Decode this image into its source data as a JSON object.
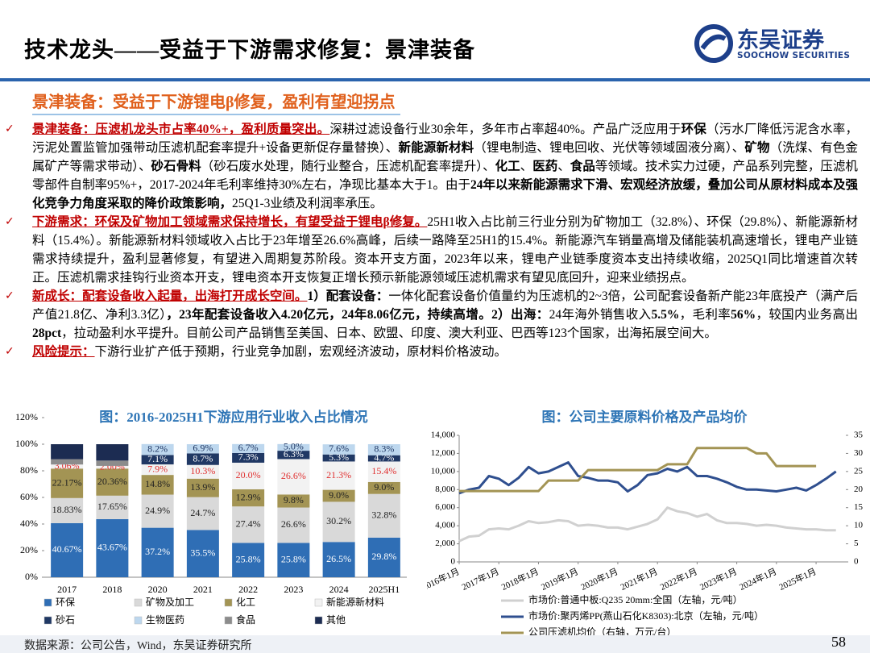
{
  "header": {
    "title": "技术龙头——受益于下游需求修复：景津装备",
    "logo_name": "东吴证券",
    "logo_sub": "SOOCHOW SECURITIES"
  },
  "section_title": "景津装备：受益于下游锂电β修复，盈利有望迎拐点",
  "bullets": [
    {
      "runs": [
        {
          "text": "景津装备：压滤机龙头市占率40%+，盈利质量突出。",
          "style": "red-bold"
        },
        {
          "text": "深耕过滤设备行业30余年，多年市占率超40%。产品广泛应用于",
          "style": "normal"
        },
        {
          "text": "环保",
          "style": "bold"
        },
        {
          "text": "（污水厂降低污泥含水率，污泥处置监管加强带动压滤机配套率提升+设备更新促存量替换）、",
          "style": "normal"
        },
        {
          "text": "新能源新材料",
          "style": "bold"
        },
        {
          "text": "（锂电制造、锂电回收、光伏等领域固液分离）、",
          "style": "normal"
        },
        {
          "text": "矿物",
          "style": "bold"
        },
        {
          "text": "（洗煤、有色金属矿产等需求带动）、",
          "style": "normal"
        },
        {
          "text": "砂石骨料",
          "style": "bold"
        },
        {
          "text": "（砂石废水处理，随行业整合，压滤机配套率提升）、",
          "style": "normal"
        },
        {
          "text": "化工",
          "style": "bold"
        },
        {
          "text": "、",
          "style": "normal"
        },
        {
          "text": "医药",
          "style": "bold"
        },
        {
          "text": "、",
          "style": "normal"
        },
        {
          "text": "食品",
          "style": "bold"
        },
        {
          "text": "等领域。技术实力过硬，产品系列完整，压滤机零部件自制率95%+，2017-2024年毛利率维持30%左右，净现比基本大于1。由于",
          "style": "normal"
        },
        {
          "text": "24年以来新能源需求下滑、宏观经济放缓，叠加公司从原材料成本及强化竞争力角度采取的降价政策影响，",
          "style": "bold"
        },
        {
          "text": "25Q1-3业绩及利润率承压。",
          "style": "normal"
        }
      ]
    },
    {
      "runs": [
        {
          "text": "下游需求：环保及矿物加工领域需求保持增长，有望受益于锂电β修复。",
          "style": "red-bold"
        },
        {
          "text": "25H1收入占比前三行业分别为矿物加工（32.8%）、环保（29.8%）、新能源新材料（15.4%）。新能源新材料领域收入占比于23年增至26.6%高峰，后续一路降至25H1的15.4%。新能源汽车销量高增及储能装机高速增长，锂电产业链需求持续提升，盈利显著修复，有望进入周期复苏阶段。资本开支方面，2023年以来，锂电产业链季度资本支出持续收缩，2025Q1同比增速首次转正。压滤机需求挂钩行业资本开支，锂电资本开支恢复正增长预示新能源领域压滤机需求有望见底回升，迎来业绩拐点。",
          "style": "normal"
        }
      ]
    },
    {
      "runs": [
        {
          "text": "新成长：配套设备收入起量，出海打开成长空间。",
          "style": "red-bold"
        },
        {
          "text": "1）配套设备：",
          "style": "bold"
        },
        {
          "text": "一体化配套设备价值量约为压滤机的2~3倍，公司配套设备新产能23年底投产（满产后产值21.8亿、净利3.3亿）",
          "style": "normal"
        },
        {
          "text": "，23年配套设备收入4.20亿元，24年8.06亿元，持续高增。2）出海：",
          "style": "bold"
        },
        {
          "text": "24年海外销售收入",
          "style": "normal"
        },
        {
          "text": "5.5%",
          "style": "bold"
        },
        {
          "text": "，毛利率",
          "style": "normal"
        },
        {
          "text": "56%",
          "style": "bold"
        },
        {
          "text": "，较国内业务高出",
          "style": "normal"
        },
        {
          "text": "28pct",
          "style": "bold"
        },
        {
          "text": "，拉动盈利水平提升。目前公司产品销售至美国、日本、欧盟、印度、澳大利亚、巴西等123个国家，出海拓展空间大。",
          "style": "normal"
        }
      ]
    },
    {
      "runs": [
        {
          "text": "风险提示：",
          "style": "red-bold"
        },
        {
          "text": "下游行业扩产低于预期，行业竞争加剧，宏观经济波动，原材料价格波动。",
          "style": "normal"
        }
      ]
    }
  ],
  "chart_data": [
    {
      "type": "stacked_bar",
      "title": "图：2016-2025H1下游应用行业收入占比情况",
      "categories": [
        "2017",
        "2018",
        "2020",
        "2021",
        "2022",
        "2023",
        "2024",
        "2025H1"
      ],
      "ylim": [
        0,
        120
      ],
      "yticks": [
        {
          "value": 0,
          "label": "0%"
        },
        {
          "value": 20,
          "label": "20%"
        },
        {
          "value": 40,
          "label": "40%"
        },
        {
          "value": 60,
          "label": "60%"
        },
        {
          "value": 80,
          "label": "80%"
        },
        {
          "value": 100,
          "label": "100%"
        },
        {
          "value": 120,
          "label": "120%"
        }
      ],
      "series": [
        {
          "name": "环保",
          "color": "#2f6eb5",
          "label_color": "#ffffff",
          "values": [
            40.67,
            43.67,
            37.2,
            35.5,
            25.8,
            25.8,
            26.5,
            29.8
          ],
          "value_labels": [
            "40.67%",
            "43.67%",
            "37.2%",
            "35.5%",
            "25.8%",
            "25.8%",
            "26.5%",
            "29.8%"
          ]
        },
        {
          "name": "矿物及加工",
          "color": "#d9d9d9",
          "label_color": "#222222",
          "values": [
            18.83,
            17.65,
            24.9,
            24.7,
            27.4,
            26.6,
            30.2,
            32.8
          ],
          "value_labels": [
            "18.83%",
            "17.65%",
            "24.9%",
            "24.7%",
            "27.4%",
            "26.6%",
            "30.2%",
            "32.8%"
          ]
        },
        {
          "name": "化工",
          "color": "#a39454",
          "label_color": "#222222",
          "values": [
            22.17,
            20.36,
            14.8,
            13.9,
            12.9,
            9.8,
            9.0,
            9.0
          ],
          "value_labels": [
            "22.17%",
            "20.36%",
            "14.8%",
            "13.9%",
            "12.9%",
            "9.8%",
            "9.0%",
            "9.0%"
          ]
        },
        {
          "name": "新能源新材料",
          "color": "#f2f2f2",
          "label_color": "#e03030",
          "values": [
            3.06,
            2.0,
            7.9,
            10.3,
            20.0,
            26.6,
            21.3,
            15.4
          ],
          "value_labels": [
            "3.06%",
            "2.00%",
            "7.9%",
            "10.3%",
            "20.0%",
            "26.6%",
            "21.3%",
            "15.4%"
          ]
        },
        {
          "name": "砂石",
          "color": "#203864",
          "label_color": "#ffffff",
          "values": [
            null,
            null,
            7.1,
            8.7,
            7.3,
            6.3,
            5.3,
            4.7
          ],
          "value_labels": [
            null,
            null,
            "7.1%",
            "8.7%",
            "7.3%",
            "6.3%",
            "5.3%",
            "4.7%"
          ]
        },
        {
          "name": "生物医药",
          "color": "#bdd7ee",
          "label_color": "#203864",
          "values": [
            null,
            null,
            8.2,
            6.9,
            6.7,
            5.0,
            7.6,
            8.3
          ],
          "value_labels": [
            null,
            null,
            "8.2%",
            "6.9%",
            "6.7%",
            "5.0%",
            "7.6%",
            "8.3%"
          ]
        },
        {
          "name": "食品",
          "color": "#8c8c8c",
          "label_color": "#222222",
          "values": [
            4,
            4,
            null,
            null,
            null,
            null,
            null,
            null
          ]
        },
        {
          "name": "其他",
          "color": "#1c2c52",
          "label_color": "#ffffff",
          "values": [
            11.27,
            12.32,
            null,
            null,
            null,
            null,
            null,
            null
          ]
        }
      ]
    },
    {
      "type": "line",
      "title": "图：公司主要原料价格及产品均价",
      "xlim": [
        2016,
        2025.75
      ],
      "xticks": [
        {
          "value": 2016,
          "label": "2016年1月"
        },
        {
          "value": 2017,
          "label": "2017年1月"
        },
        {
          "value": 2018,
          "label": "2018年1月"
        },
        {
          "value": 2019,
          "label": "2019年1月"
        },
        {
          "value": 2020,
          "label": "2020年1月"
        },
        {
          "value": 2021,
          "label": "2021年1月"
        },
        {
          "value": 2022,
          "label": "2022年1月"
        },
        {
          "value": 2023,
          "label": "2023年1月"
        },
        {
          "value": 2024,
          "label": "2024年1月"
        },
        {
          "value": 2025,
          "label": "2025年1月"
        }
      ],
      "ylim": [
        0,
        14000
      ],
      "yticks": [
        0,
        {
          "value": 2000,
          "label": "2,000"
        },
        {
          "value": 4000,
          "label": "4,000"
        },
        {
          "value": 6000,
          "label": "6,000"
        },
        {
          "value": 8000,
          "label": "8,000"
        },
        {
          "value": 10000,
          "label": "10,000"
        },
        {
          "value": 12000,
          "label": "12,000"
        },
        {
          "value": 14000,
          "label": "14,000"
        }
      ],
      "y2lim": [
        0,
        35
      ],
      "y2ticks": [
        0,
        5,
        10,
        15,
        20,
        25,
        30,
        35
      ],
      "x": [
        2016,
        2016.25,
        2016.5,
        2016.75,
        2017,
        2017.25,
        2017.5,
        2017.75,
        2018,
        2018.25,
        2018.5,
        2018.75,
        2019,
        2019.25,
        2019.5,
        2019.75,
        2020,
        2020.25,
        2020.5,
        2020.75,
        2021,
        2021.25,
        2021.5,
        2021.75,
        2022,
        2022.25,
        2022.5,
        2022.75,
        2023,
        2023.25,
        2023.5,
        2023.75,
        2024,
        2024.25,
        2024.5,
        2024.75,
        2025,
        2025.25,
        2025.5
      ],
      "series": [
        {
          "name": "市场价:普通中板:Q235 20mm:全国（左轴，元/吨）",
          "color": "#d0d0d0",
          "width": 3,
          "axis": "y",
          "values": [
            2300,
            2800,
            2900,
            3600,
            3700,
            3600,
            4000,
            4500,
            4300,
            4400,
            4600,
            4500,
            4000,
            4100,
            4000,
            3800,
            3800,
            3600,
            3900,
            4200,
            4700,
            6000,
            5600,
            5400,
            5000,
            5300,
            4600,
            4300,
            4300,
            4200,
            4000,
            4100,
            4000,
            3800,
            3700,
            3600,
            3600,
            3500,
            3500
          ]
        },
        {
          "name": "市场价:聚丙烯PP(燕山石化K8303):北京（左轴，元/吨）",
          "color": "#2f4f8f",
          "width": 3,
          "axis": "y",
          "values": [
            7600,
            8000,
            8200,
            9500,
            9200,
            8500,
            9300,
            10500,
            9800,
            10000,
            10500,
            11000,
            9500,
            9300,
            9000,
            9000,
            8800,
            7800,
            8500,
            9600,
            9800,
            10300,
            10000,
            10500,
            9500,
            9500,
            9200,
            8800,
            8300,
            8000,
            8000,
            7900,
            7800,
            8000,
            8200,
            7900,
            8500,
            9200,
            10000
          ]
        },
        {
          "name": "公司压滤机均价（右轴，万元/台）",
          "color": "#a39454",
          "width": 3,
          "axis": "y2",
          "values": [
            19.6,
            19.6,
            19.6,
            19.6,
            19.6,
            19.6,
            19.6,
            19.6,
            19.6,
            22.5,
            22.5,
            22.5,
            22.5,
            25.4,
            25.4,
            25.4,
            25.4,
            25.4,
            25.4,
            25.4,
            25.4,
            27,
            27,
            27,
            31.5,
            31.5,
            31.5,
            31.5,
            31.5,
            31.5,
            30,
            30,
            26.5,
            26.5,
            26.5,
            26.5,
            26.5,
            null,
            null
          ]
        }
      ]
    }
  ],
  "footer": {
    "source": "数据来源：公司公告，Wind，东吴证券研究所",
    "page": "58"
  }
}
